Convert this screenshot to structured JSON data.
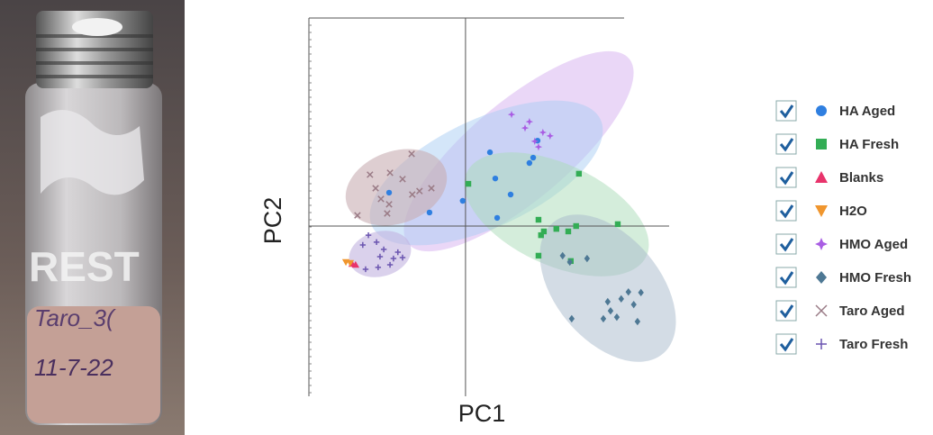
{
  "photo": {
    "label_texts": [
      "REST",
      "Taro_3(",
      "11-7-22"
    ]
  },
  "chart_data": {
    "type": "scatter",
    "x_label": "PC1",
    "y_label": "PC2",
    "xlim": [
      -5,
      6.5
    ],
    "ylim": [
      -5.4,
      6.6
    ],
    "legend": "right",
    "series": [
      {
        "name": "HA Aged",
        "color": "#2f7fe0",
        "marker": "circle",
        "x": [
          -2.44,
          -1.15,
          -0.09,
          0.78,
          0.95,
          1.01,
          1.44,
          2.04,
          2.16,
          2.3
        ],
        "values": [
          1.06,
          0.43,
          0.8,
          2.34,
          1.51,
          0.26,
          1.0,
          2.0,
          2.17,
          2.71
        ]
      },
      {
        "name": "HA Fresh",
        "color": "#33ad55",
        "marker": "square",
        "x": [
          0.09,
          2.33,
          2.33,
          2.41,
          2.5,
          2.9,
          3.28,
          3.53,
          3.62,
          3.36,
          4.86
        ],
        "values": [
          1.34,
          0.2,
          -0.94,
          -0.29,
          -0.17,
          -0.09,
          -0.17,
          0.0,
          1.66,
          -1.11,
          0.06
        ]
      },
      {
        "name": "Blanks",
        "color": "#e8336b",
        "marker": "triangle-up",
        "x": [
          -3.62,
          -3.51
        ],
        "values": [
          -1.2,
          -1.23
        ]
      },
      {
        "name": "H2O",
        "color": "#f0962e",
        "marker": "triangle-down",
        "x": [
          -3.82,
          -3.68
        ],
        "values": [
          -1.14,
          -1.17
        ]
      },
      {
        "name": "HMO Aged",
        "color": "#a95de3",
        "marker": "star4",
        "x": [
          1.47,
          1.9,
          2.21,
          2.33,
          2.47,
          2.7,
          2.04
        ],
        "values": [
          3.54,
          3.11,
          2.69,
          2.51,
          2.97,
          2.86,
          3.31
        ]
      },
      {
        "name": "HMO Fresh",
        "color": "#4e7894",
        "marker": "diamond",
        "x": [
          3.1,
          3.33,
          3.88,
          3.39,
          4.4,
          4.63,
          4.83,
          4.97,
          5.2,
          5.6,
          5.37,
          5.49,
          4.54
        ],
        "values": [
          -0.94,
          -1.14,
          -1.03,
          -2.94,
          -2.94,
          -2.69,
          -2.89,
          -2.31,
          -2.09,
          -2.11,
          -2.49,
          -3.03,
          -2.4
        ]
      },
      {
        "name": "Taro Aged",
        "color": "#9a7b86",
        "marker": "x",
        "x": [
          -3.45,
          -3.05,
          -2.87,
          -2.7,
          -2.44,
          -2.41,
          -1.72,
          -1.7,
          -1.47,
          -1.09,
          -2.5,
          -2.01
        ],
        "values": [
          0.34,
          1.63,
          1.2,
          0.86,
          0.69,
          1.69,
          2.29,
          1.0,
          1.11,
          1.2,
          0.4,
          1.49
        ]
      },
      {
        "name": "Taro Fresh",
        "color": "#6b55b0",
        "marker": "plus",
        "x": [
          -3.28,
          -3.1,
          -2.84,
          -2.73,
          -2.61,
          -2.41,
          -2.3,
          -2.16,
          -2.01,
          -3.19,
          -2.79
        ],
        "values": [
          -0.6,
          -0.29,
          -0.51,
          -0.97,
          -0.74,
          -1.23,
          -1.03,
          -0.83,
          -1.0,
          -1.37,
          -1.31
        ]
      }
    ]
  }
}
